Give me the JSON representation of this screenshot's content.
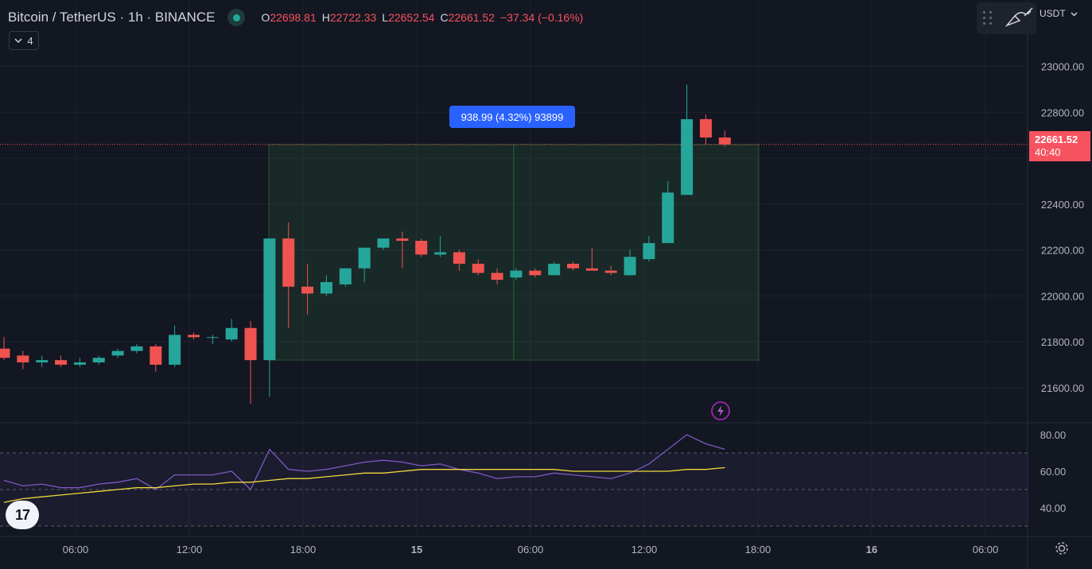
{
  "header": {
    "symbol_title": "Bitcoin / TetherUS · 1h · BINANCE",
    "ohlc": {
      "o_label": "O",
      "o_value": "22698.81",
      "h_label": "H",
      "h_value": "22722.33",
      "l_label": "L",
      "l_value": "22652.54",
      "c_label": "C",
      "c_value": "22661.52",
      "change": "−37.34 (−0.16%)"
    },
    "indicators_count": "4"
  },
  "toolbar": {
    "currency": "USDT",
    "drag_handle_icon": "grip-icon",
    "draw_icon": "brush-icon"
  },
  "price_scale": {
    "labels": [
      "23000.00",
      "22800.00",
      "22400.00",
      "22200.00",
      "22000.00",
      "21800.00",
      "21600.00"
    ],
    "last_price": "22661.52",
    "countdown": "40:40"
  },
  "rsi_scale": {
    "labels": [
      "80.00",
      "60.00",
      "40.00"
    ]
  },
  "time_axis": {
    "labels": [
      "06:00",
      "12:00",
      "18:00",
      "15",
      "06:00",
      "12:00",
      "18:00",
      "16",
      "06:00"
    ]
  },
  "measure": {
    "label": "938.99 (4.32%) 93899"
  },
  "colors": {
    "bg": "#131722",
    "up": "#26a69a",
    "down": "#ef5350",
    "rsi": "#7e57c2",
    "rsi_ma": "#f0d83c",
    "measure_fill": "rgba(76,175,80,0.12)",
    "accent": "#2962ff"
  },
  "chart_data": {
    "type": "candlestick",
    "interval": "1h",
    "price_range": [
      21480,
      23150
    ],
    "candles": [
      {
        "o": 21770,
        "h": 21820,
        "l": 21720,
        "c": 21730
      },
      {
        "o": 21740,
        "h": 21760,
        "l": 21680,
        "c": 21710
      },
      {
        "o": 21710,
        "h": 21740,
        "l": 21690,
        "c": 21720
      },
      {
        "o": 21720,
        "h": 21740,
        "l": 21690,
        "c": 21700
      },
      {
        "o": 21700,
        "h": 21730,
        "l": 21690,
        "c": 21710
      },
      {
        "o": 21710,
        "h": 21740,
        "l": 21700,
        "c": 21730
      },
      {
        "o": 21740,
        "h": 21770,
        "l": 21730,
        "c": 21760
      },
      {
        "o": 21760,
        "h": 21790,
        "l": 21750,
        "c": 21780
      },
      {
        "o": 21780,
        "h": 21790,
        "l": 21670,
        "c": 21700
      },
      {
        "o": 21700,
        "h": 21870,
        "l": 21690,
        "c": 21830
      },
      {
        "o": 21830,
        "h": 21840,
        "l": 21810,
        "c": 21820
      },
      {
        "o": 21820,
        "h": 21830,
        "l": 21790,
        "c": 21820
      },
      {
        "o": 21810,
        "h": 21900,
        "l": 21800,
        "c": 21860
      },
      {
        "o": 21860,
        "h": 21890,
        "l": 21530,
        "c": 21720
      },
      {
        "o": 21720,
        "h": 22250,
        "l": 21560,
        "c": 22250
      },
      {
        "o": 22250,
        "h": 22320,
        "l": 21860,
        "c": 22040
      },
      {
        "o": 22040,
        "h": 22140,
        "l": 21920,
        "c": 22010
      },
      {
        "o": 22010,
        "h": 22090,
        "l": 22000,
        "c": 22060
      },
      {
        "o": 22050,
        "h": 22120,
        "l": 22040,
        "c": 22120
      },
      {
        "o": 22120,
        "h": 22210,
        "l": 22060,
        "c": 22210
      },
      {
        "o": 22210,
        "h": 22250,
        "l": 22200,
        "c": 22250
      },
      {
        "o": 22250,
        "h": 22280,
        "l": 22120,
        "c": 22240
      },
      {
        "o": 22240,
        "h": 22250,
        "l": 22170,
        "c": 22180
      },
      {
        "o": 22180,
        "h": 22260,
        "l": 22170,
        "c": 22190
      },
      {
        "o": 22190,
        "h": 22200,
        "l": 22110,
        "c": 22140
      },
      {
        "o": 22140,
        "h": 22160,
        "l": 22090,
        "c": 22100
      },
      {
        "o": 22100,
        "h": 22120,
        "l": 22050,
        "c": 22070
      },
      {
        "o": 22080,
        "h": 22120,
        "l": 22070,
        "c": 22110
      },
      {
        "o": 22110,
        "h": 22120,
        "l": 22080,
        "c": 22090
      },
      {
        "o": 22090,
        "h": 22150,
        "l": 22090,
        "c": 22140
      },
      {
        "o": 22140,
        "h": 22150,
        "l": 22110,
        "c": 22120
      },
      {
        "o": 22120,
        "h": 22210,
        "l": 22110,
        "c": 22110
      },
      {
        "o": 22110,
        "h": 22130,
        "l": 22090,
        "c": 22100
      },
      {
        "o": 22090,
        "h": 22200,
        "l": 22090,
        "c": 22170
      },
      {
        "o": 22160,
        "h": 22260,
        "l": 22150,
        "c": 22230
      },
      {
        "o": 22230,
        "h": 22500,
        "l": 22230,
        "c": 22450
      },
      {
        "o": 22440,
        "h": 22920,
        "l": 22440,
        "c": 22770
      },
      {
        "o": 22770,
        "h": 22790,
        "l": 22660,
        "c": 22690
      },
      {
        "o": 22690,
        "h": 22720,
        "l": 22650,
        "c": 22660
      }
    ],
    "measure_box": {
      "start_index": 14,
      "end_index": 39,
      "low": 21720,
      "high": 22659
    },
    "rsi": {
      "range": [
        30,
        90
      ],
      "levels": [
        70,
        50,
        30
      ],
      "values": [
        55,
        52,
        53,
        51,
        51,
        53,
        54,
        56,
        50,
        58,
        58,
        58,
        60,
        50,
        72,
        61,
        60,
        61,
        63,
        65,
        66,
        65,
        63,
        64,
        61,
        59,
        56,
        57,
        57,
        59,
        58,
        57,
        56,
        59,
        64,
        72,
        80,
        75,
        72
      ],
      "ma": [
        43,
        45,
        46,
        47,
        48,
        49,
        50,
        51,
        51,
        52,
        53,
        53,
        54,
        54,
        55,
        56,
        56,
        57,
        58,
        59,
        59,
        60,
        61,
        61,
        61,
        61,
        61,
        61,
        61,
        61,
        60,
        60,
        60,
        60,
        60,
        60,
        61,
        61,
        62
      ]
    }
  }
}
